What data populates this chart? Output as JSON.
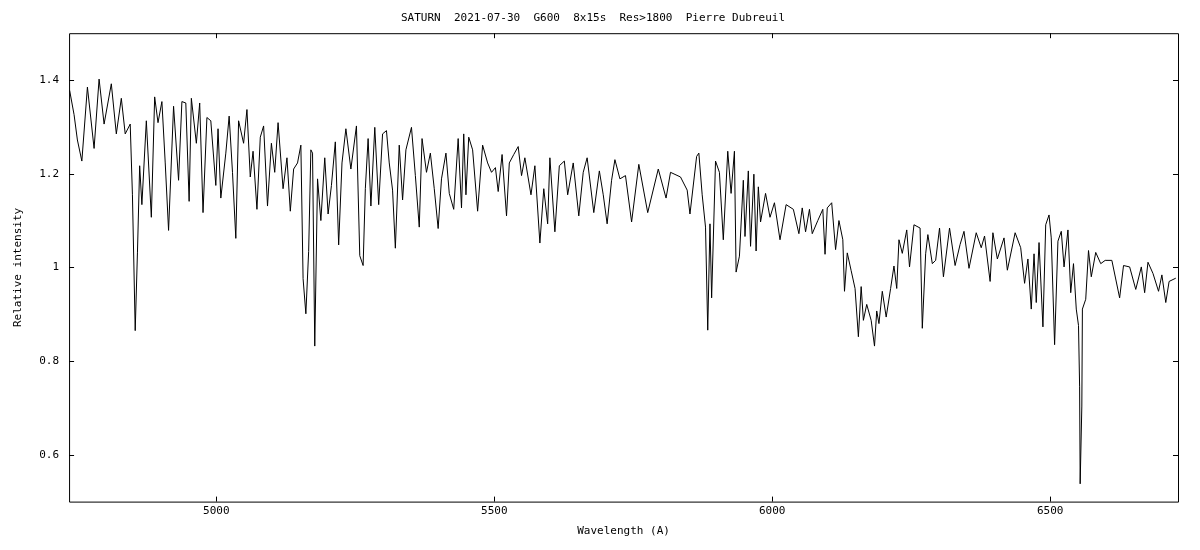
{
  "chart_data": {
    "type": "line",
    "title": "SATURN  2021-07-30  G600  8x15s  Res>1800  Pierre Dubreuil",
    "xlabel": "Wavelength (A)",
    "ylabel": "Relative intensity",
    "xlim": [
      4735,
      6730
    ],
    "ylim": [
      0.5,
      1.5
    ],
    "xticks": [
      5000,
      5500,
      6000,
      6500
    ],
    "yticks": [
      0.6,
      0.8,
      1,
      1.2,
      1.4
    ],
    "grid": false,
    "legend": false,
    "marker": "none",
    "line_style": "solid",
    "series": [
      {
        "color": "#000000",
        "x": [
          4736,
          4744,
          4750,
          4758,
          4768,
          4780,
          4789,
          4798,
          4811,
          4820,
          4829,
          4836,
          4845,
          4849,
          4854,
          4858,
          4862,
          4866,
          4874,
          4883,
          4889,
          4895,
          4902,
          4908,
          4914,
          4923,
          4932,
          4938,
          4945,
          4951,
          4955,
          4964,
          4970,
          4976,
          4983,
          4990,
          4999,
          5003,
          5008,
          5017,
          5023,
          5029,
          5035,
          5040,
          5049,
          5055,
          5061,
          5066,
          5073,
          5079,
          5085,
          5092,
          5099,
          5105,
          5111,
          5120,
          5127,
          5133,
          5139,
          5146,
          5152,
          5156,
          5161,
          5166,
          5170,
          5173,
          5177,
          5182,
          5188,
          5195,
          5201,
          5207,
          5214,
          5220,
          5226,
          5233,
          5242,
          5252,
          5258,
          5264,
          5268,
          5273,
          5278,
          5285,
          5292,
          5299,
          5306,
          5311,
          5317,
          5322,
          5329,
          5335,
          5341,
          5351,
          5358,
          5365,
          5370,
          5378,
          5385,
          5392,
          5399,
          5405,
          5413,
          5419,
          5427,
          5435,
          5441,
          5445,
          5449,
          5454,
          5461,
          5470,
          5479,
          5488,
          5495,
          5502,
          5507,
          5514,
          5522,
          5527,
          5535,
          5543,
          5549,
          5555,
          5566,
          5573,
          5582,
          5589,
          5596,
          5600,
          5609,
          5617,
          5626,
          5632,
          5642,
          5652,
          5660,
          5667,
          5679,
          5689,
          5696,
          5703,
          5711,
          5717,
          5726,
          5736,
          5747,
          5760,
          5776,
          5795,
          5809,
          5817,
          5835,
          5847,
          5852,
          5864,
          5868,
          5874,
          5880,
          5884,
          5888,
          5891,
          5898,
          5905,
          5912,
          5920,
          5926,
          5932,
          5935,
          5941,
          5948,
          5951,
          5957,
          5961,
          5967,
          5971,
          5975,
          5979,
          5988,
          5996,
          6004,
          6014,
          6025,
          6038,
          6048,
          6054,
          6060,
          6067,
          6072,
          6082,
          6091,
          6095,
          6099,
          6107,
          6114,
          6120,
          6127,
          6130,
          6135,
          6142,
          6149,
          6155,
          6160,
          6164,
          6170,
          6178,
          6184,
          6188,
          6192,
          6198,
          6205,
          6213,
          6219,
          6224,
          6228,
          6234,
          6242,
          6247,
          6255,
          6266,
          6270,
          6276,
          6280,
          6288,
          6294,
          6301,
          6308,
          6319,
          6329,
          6338,
          6345,
          6354,
          6367,
          6376,
          6382,
          6392,
          6397,
          6405,
          6417,
          6423,
          6437,
          6447,
          6454,
          6460,
          6466,
          6471,
          6475,
          6480,
          6487,
          6492,
          6498,
          6502,
          6508,
          6514,
          6520,
          6525,
          6532,
          6537,
          6542,
          6547,
          6551,
          6553,
          6554,
          6557,
          6558,
          6564,
          6569,
          6574,
          6582,
          6591,
          6599,
          6611,
          6625,
          6632,
          6643,
          6654,
          6664,
          6670,
          6676,
          6685,
          6695,
          6701,
          6708,
          6714,
          6726
        ],
        "values": [
          1.378,
          1.326,
          1.272,
          1.227,
          1.385,
          1.254,
          1.402,
          1.306,
          1.392,
          1.285,
          1.361,
          1.285,
          1.306,
          1.155,
          0.865,
          1.031,
          1.217,
          1.134,
          1.313,
          1.107,
          1.364,
          1.309,
          1.354,
          1.223,
          1.079,
          1.344,
          1.186,
          1.354,
          1.351,
          1.141,
          1.361,
          1.265,
          1.351,
          1.117,
          1.32,
          1.313,
          1.175,
          1.296,
          1.148,
          1.244,
          1.323,
          1.203,
          1.062,
          1.313,
          1.265,
          1.337,
          1.193,
          1.248,
          1.124,
          1.278,
          1.302,
          1.131,
          1.265,
          1.203,
          1.309,
          1.168,
          1.234,
          1.12,
          1.21,
          1.223,
          1.261,
          0.976,
          0.901,
          1.034,
          1.251,
          1.244,
          0.832,
          1.189,
          1.1,
          1.234,
          1.114,
          1.175,
          1.268,
          1.048,
          1.223,
          1.296,
          1.21,
          1.302,
          1.025,
          1.004,
          1.168,
          1.275,
          1.131,
          1.299,
          1.134,
          1.285,
          1.292,
          1.223,
          1.165,
          1.041,
          1.261,
          1.144,
          1.251,
          1.299,
          1.196,
          1.086,
          1.275,
          1.203,
          1.244,
          1.168,
          1.083,
          1.189,
          1.244,
          1.158,
          1.124,
          1.275,
          1.127,
          1.285,
          1.155,
          1.278,
          1.251,
          1.12,
          1.261,
          1.223,
          1.203,
          1.213,
          1.162,
          1.241,
          1.11,
          1.223,
          1.241,
          1.258,
          1.196,
          1.234,
          1.155,
          1.217,
          1.052,
          1.168,
          1.093,
          1.234,
          1.076,
          1.217,
          1.227,
          1.155,
          1.223,
          1.11,
          1.203,
          1.234,
          1.117,
          1.206,
          1.155,
          1.093,
          1.186,
          1.23,
          1.189,
          1.196,
          1.097,
          1.22,
          1.117,
          1.21,
          1.148,
          1.203,
          1.193,
          1.165,
          1.114,
          1.237,
          1.244,
          1.155,
          1.086,
          0.866,
          1.093,
          0.935,
          1.227,
          1.203,
          1.059,
          1.248,
          1.158,
          1.248,
          0.99,
          1.024,
          1.186,
          1.066,
          1.206,
          1.045,
          1.199,
          1.035,
          1.172,
          1.097,
          1.158,
          1.107,
          1.138,
          1.059,
          1.134,
          1.124,
          1.072,
          1.127,
          1.076,
          1.124,
          1.072,
          1.1,
          1.124,
          1.028,
          1.127,
          1.138,
          1.038,
          1.1,
          1.059,
          0.949,
          1.031,
          0.993,
          0.955,
          0.852,
          0.959,
          0.887,
          0.921,
          0.887,
          0.832,
          0.907,
          0.88,
          0.949,
          0.894,
          0.955,
          1.003,
          0.955,
          1.059,
          1.03,
          1.08,
          1.001,
          1.091,
          1.084,
          0.87,
          1.029,
          1.07,
          1.008,
          1.015,
          1.084,
          0.98,
          1.084,
          1.004,
          1.049,
          1.077,
          0.998,
          1.074,
          1.042,
          1.067,
          0.97,
          1.074,
          1.018,
          1.063,
          0.994,
          1.074,
          1.042,
          0.966,
          1.018,
          0.911,
          1.029,
          0.925,
          1.053,
          0.873,
          1.091,
          1.112,
          1.063,
          0.835,
          1.056,
          1.077,
          1.001,
          1.08,
          0.946,
          1.008,
          0.911,
          0.876,
          0.745,
          0.538,
          0.704,
          0.911,
          0.932,
          1.036,
          0.98,
          1.032,
          1.008,
          1.015,
          1.015,
          0.935,
          1.004,
          1.001,
          0.953,
          1.001,
          0.946,
          1.011,
          0.987,
          0.949,
          0.984,
          0.925,
          0.97,
          0.977
        ]
      }
    ]
  }
}
